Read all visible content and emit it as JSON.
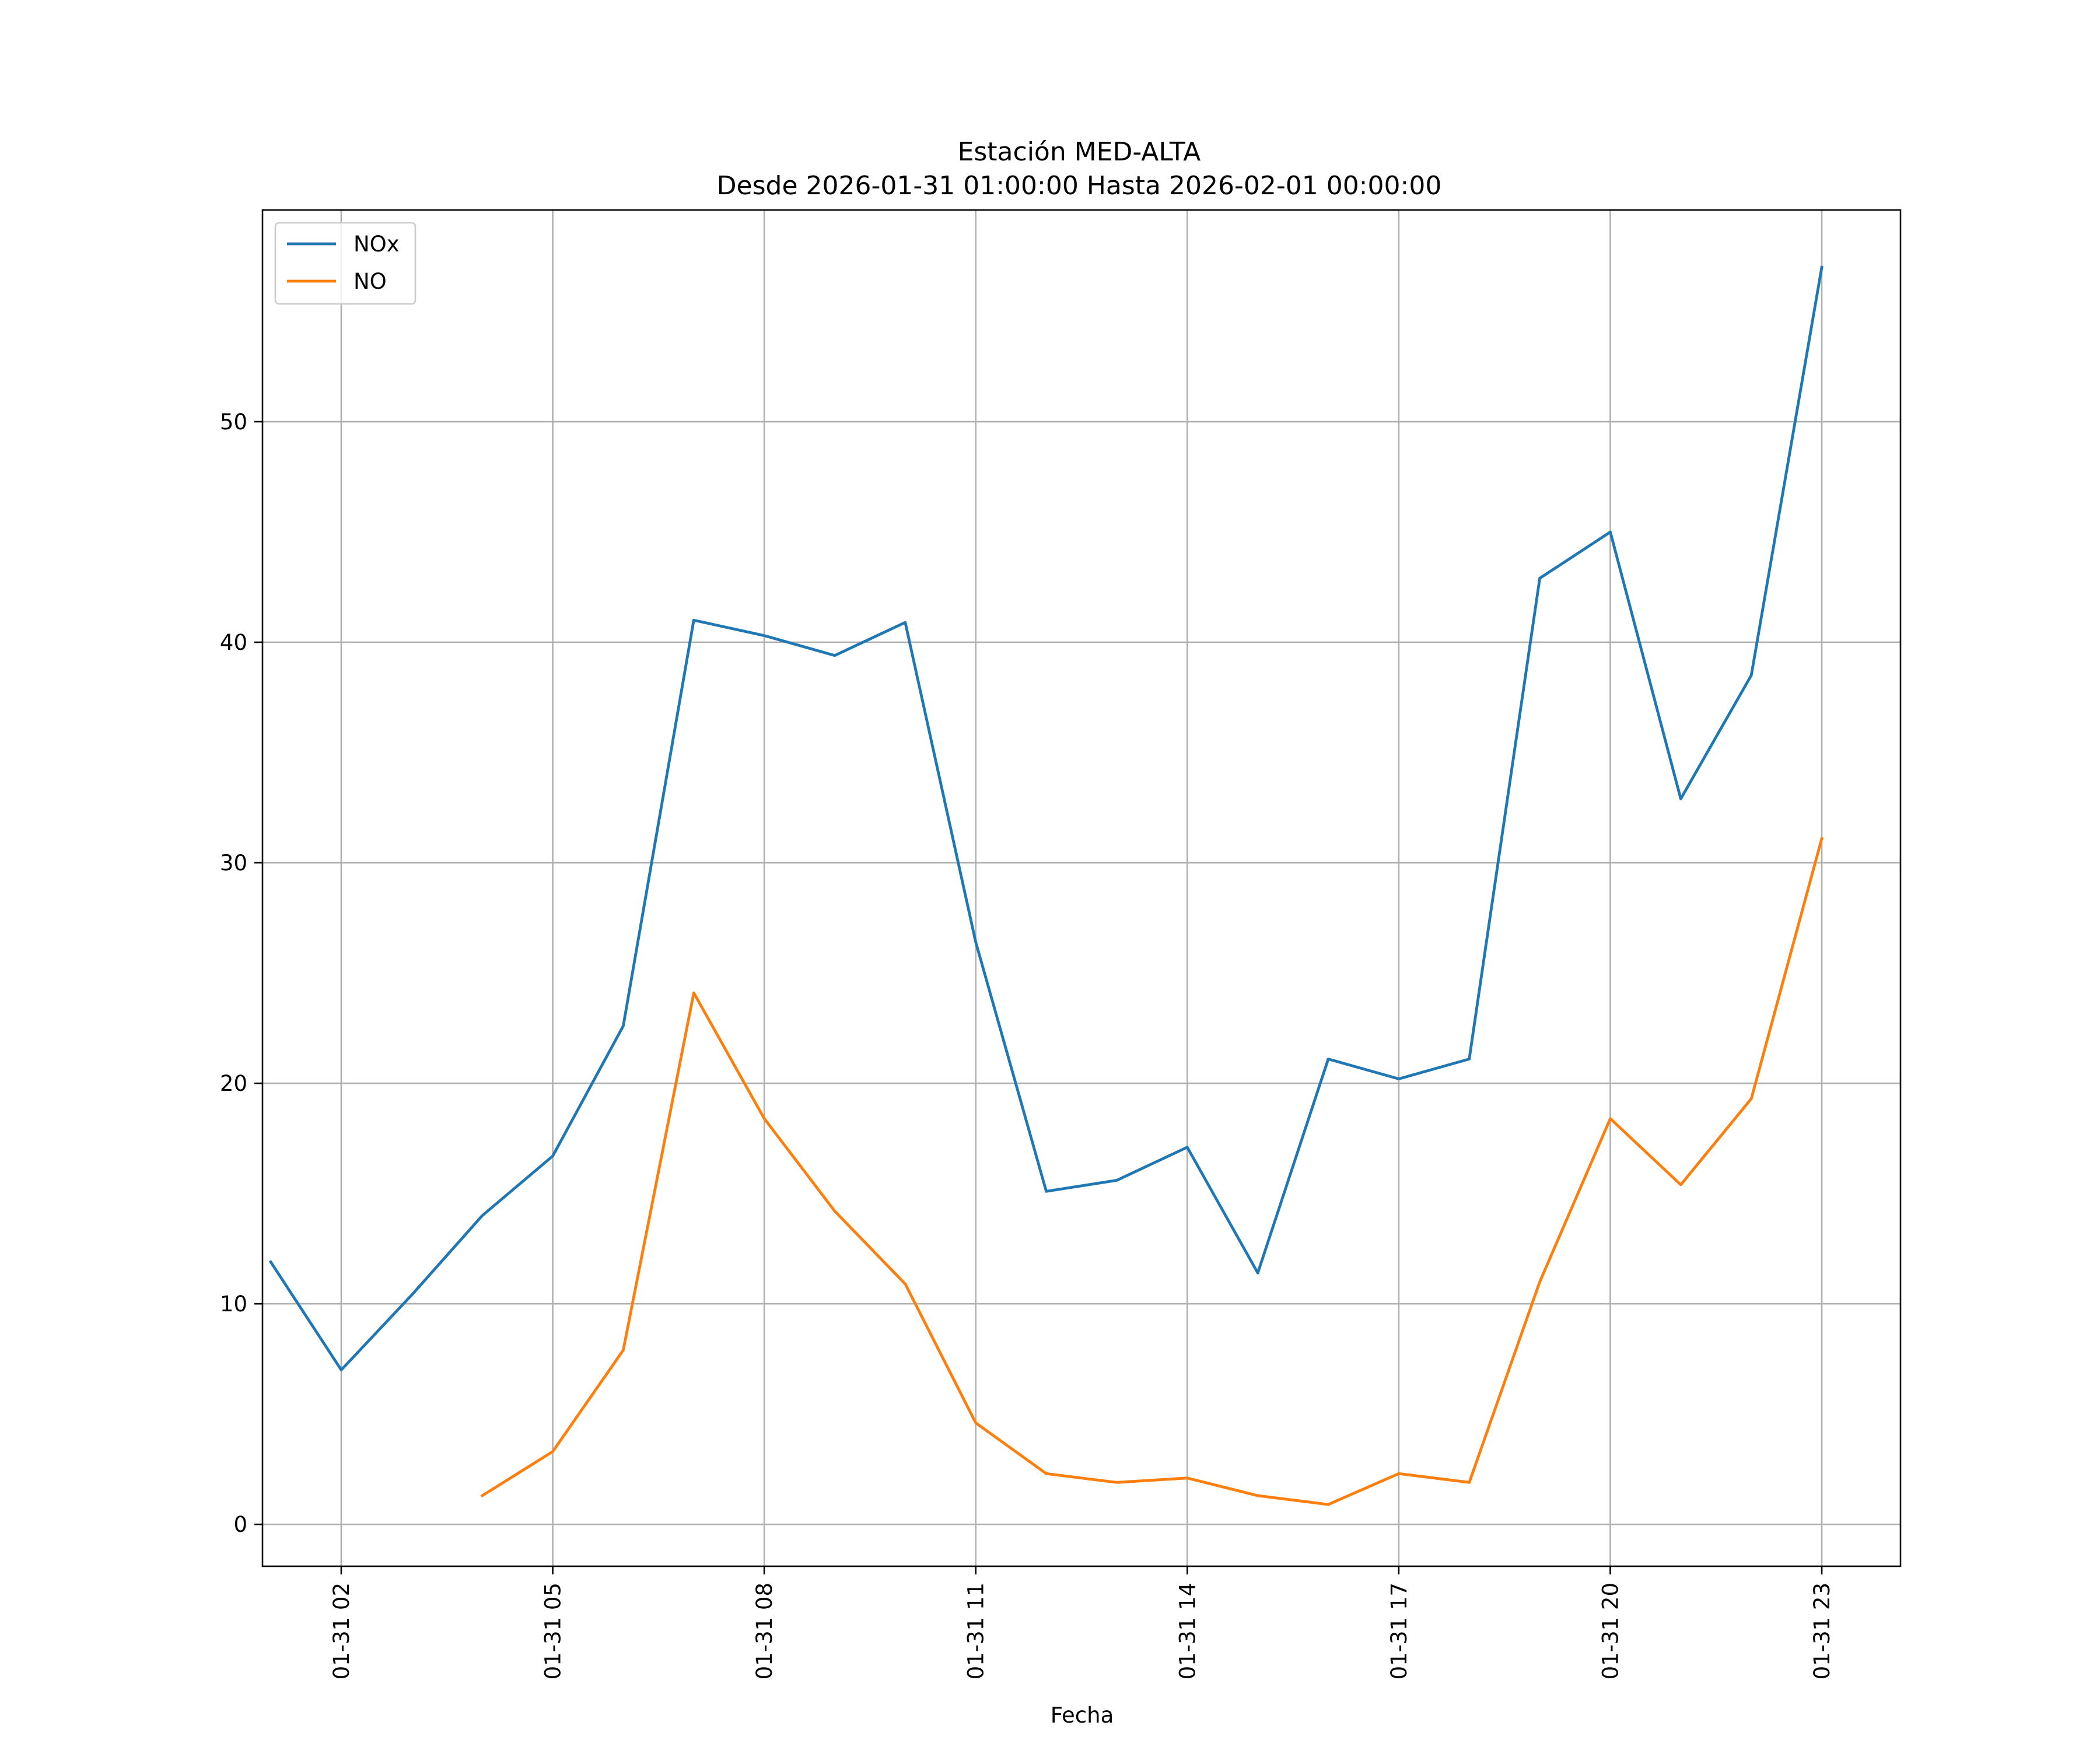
{
  "chart_data": {
    "type": "line",
    "title": "Estación MED-ALTA",
    "subtitle": "Desde 2026-01-31 01:00:00 Hasta 2026-02-01 00:00:00",
    "xlabel": "Fecha",
    "ylabel": "",
    "x": [
      "01-31 01",
      "01-31 02",
      "01-31 03",
      "01-31 04",
      "01-31 05",
      "01-31 06",
      "01-31 07",
      "01-31 08",
      "01-31 09",
      "01-31 10",
      "01-31 11",
      "01-31 12",
      "01-31 13",
      "01-31 14",
      "01-31 15",
      "01-31 16",
      "01-31 17",
      "01-31 18",
      "01-31 19",
      "01-31 20",
      "01-31 21",
      "01-31 22",
      "01-31 23"
    ],
    "xlim": [
      "01-31 00:53",
      "02-01 00:07"
    ],
    "x_ticks": [
      "01-31 02",
      "01-31 05",
      "01-31 08",
      "01-31 11",
      "01-31 14",
      "01-31 17",
      "01-31 20",
      "01-31 23"
    ],
    "ylim": [
      -1.9,
      59.6
    ],
    "y_ticks": [
      0,
      10,
      20,
      30,
      40,
      50
    ],
    "grid": true,
    "legend": "upper-left",
    "series": [
      {
        "name": "NOx",
        "color": "#1f77b4",
        "values": [
          11.9,
          7.0,
          10.4,
          14.0,
          16.7,
          22.6,
          41.0,
          40.3,
          39.4,
          40.9,
          26.4,
          15.1,
          15.6,
          17.1,
          11.4,
          21.1,
          20.2,
          21.1,
          42.9,
          45.0,
          32.9,
          38.5,
          57.0
        ]
      },
      {
        "name": "NO",
        "color": "#ff7f0e",
        "values": [
          null,
          null,
          null,
          1.3,
          3.3,
          7.9,
          24.1,
          18.4,
          14.2,
          10.9,
          4.6,
          2.3,
          1.9,
          2.1,
          1.3,
          0.9,
          2.3,
          1.9,
          11.0,
          18.4,
          15.4,
          19.3,
          31.1
        ]
      }
    ]
  }
}
